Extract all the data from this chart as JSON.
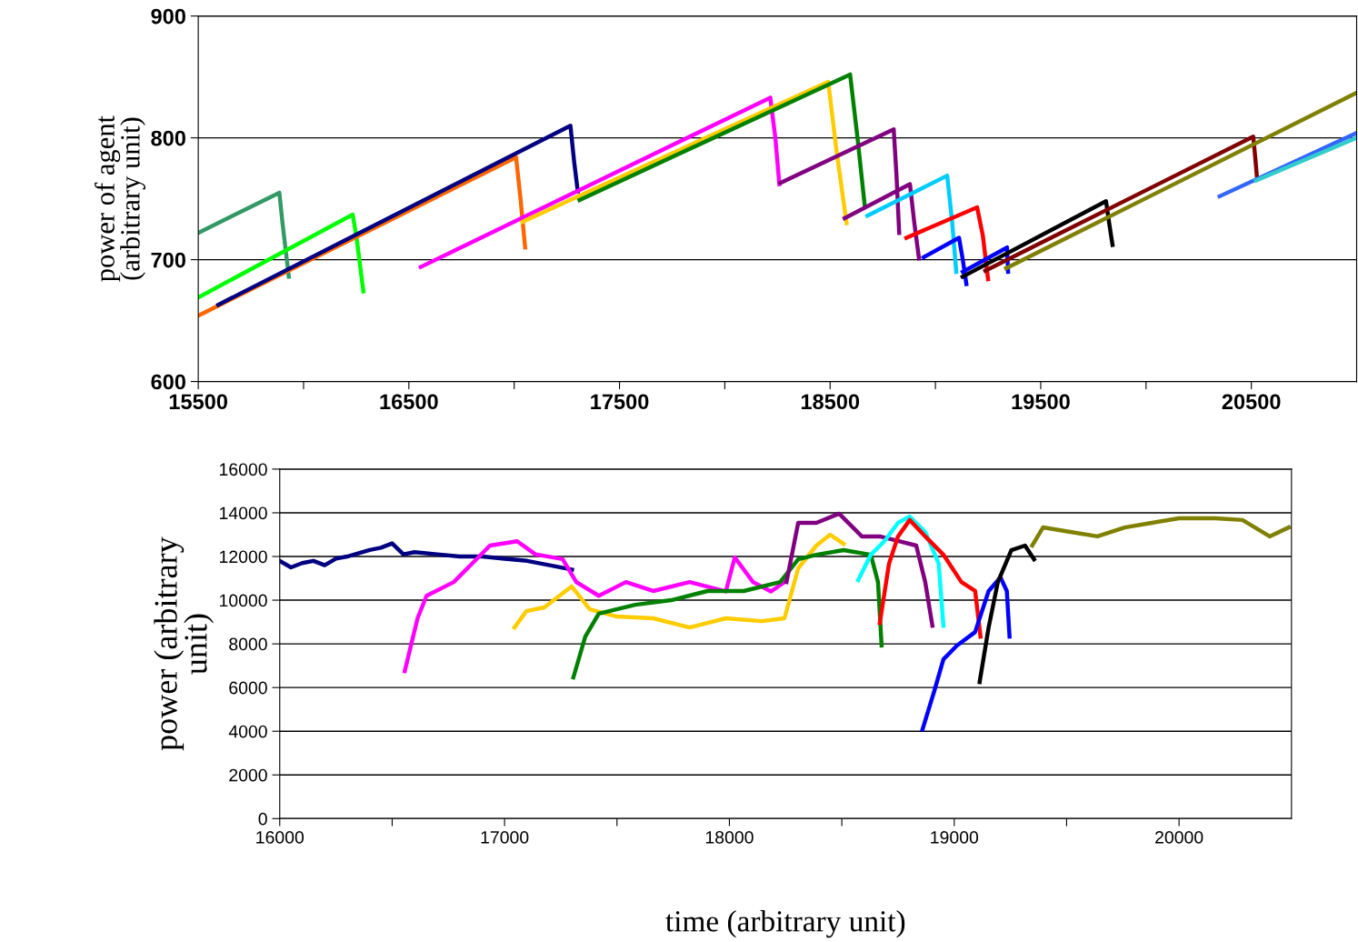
{
  "chart_data": [
    {
      "type": "line",
      "ylabel": "power of agent\n(arbitrary unit)",
      "xlim": [
        15500,
        21000
      ],
      "ylim": [
        600,
        900
      ],
      "xticks": [
        15500,
        {
          "value": 16000,
          "label": null
        },
        16500,
        {
          "value": 17000,
          "label": null
        },
        17500,
        {
          "value": 18000,
          "label": null
        },
        18500,
        {
          "value": 19000,
          "label": null
        },
        19500,
        {
          "value": 20000,
          "label": null
        },
        20500
      ],
      "yticks": [
        600,
        700,
        800,
        900
      ],
      "grid": "y",
      "legend": false,
      "marker": "none",
      "line_style": "solid",
      "series": [
        {
          "color": "#339966",
          "x": [
            15500,
            15885,
            15900,
            15930
          ],
          "values": [
            722,
            755,
            730,
            686
          ]
        },
        {
          "color": "#00ff00",
          "x": [
            15500,
            16233,
            16250,
            16284
          ],
          "values": [
            669,
            737,
            720,
            674
          ]
        },
        {
          "color": "#ff6600",
          "x": [
            15500,
            17009,
            17030,
            17052
          ],
          "values": [
            654,
            784,
            750,
            710
          ]
        },
        {
          "color": "#000080",
          "x": [
            15595,
            17267,
            17285,
            17302
          ],
          "values": [
            663,
            810,
            780,
            756
          ]
        },
        {
          "color": "#ff00ff",
          "x": [
            16556,
            18216,
            18240,
            18259
          ],
          "values": [
            694,
            833,
            800,
            762
          ]
        },
        {
          "color": "#ffcc00",
          "x": [
            17039,
            18491,
            18530,
            18578
          ],
          "values": [
            731,
            846,
            790,
            730
          ]
        },
        {
          "color": "#008000",
          "x": [
            17310,
            18595,
            18630,
            18664
          ],
          "values": [
            749,
            852,
            800,
            745
          ]
        },
        {
          "color": "#800080",
          "x": [
            18263,
            18802,
            18815,
            18828,
            null,
            18569,
            18879,
            18900,
            18922
          ],
          "values": [
            763,
            807,
            770,
            722,
            null,
            734,
            762,
            730,
            701
          ]
        },
        {
          "color": "#00ccff",
          "x": [
            18677,
            19056,
            19080,
            19099
          ],
          "values": [
            736,
            769,
            730,
            690
          ]
        },
        {
          "color": "#ff0000",
          "x": [
            18862,
            19198,
            19225,
            19250
          ],
          "values": [
            718,
            743,
            720,
            684
          ]
        },
        {
          "color": "#0000ff",
          "x": [
            18944,
            19112,
            19130,
            19147,
            null,
            19130,
            19340,
            19345
          ],
          "values": [
            702,
            718,
            700,
            680,
            null,
            690,
            710,
            690
          ]
        },
        {
          "color": "#000000",
          "x": [
            19129,
            19810,
            19825,
            19841
          ],
          "values": [
            686,
            748,
            730,
            712
          ]
        },
        {
          "color": "#800000",
          "x": [
            19237,
            20509,
            20518,
            20526
          ],
          "values": [
            691,
            801,
            785,
            769
          ]
        },
        {
          "color": "#808000",
          "x": [
            19336,
            21000
          ],
          "values": [
            693,
            837
          ]
        },
        {
          "color": "#3366ff",
          "x": [
            20349,
            21000
          ],
          "values": [
            752,
            804
          ]
        },
        {
          "color": "#33cccc",
          "x": [
            20522,
            21000
          ],
          "values": [
            765,
            800
          ]
        }
      ]
    },
    {
      "type": "line",
      "xlabel": "time (arbitrary unit)",
      "ylabel": "power (arbitrary\nunit)",
      "xlim": [
        16000,
        20500
      ],
      "ylim": [
        0,
        16000
      ],
      "xticks": [
        16000,
        {
          "value": 16500,
          "label": null
        },
        17000,
        {
          "value": 17500,
          "label": null
        },
        18000,
        {
          "value": 18500,
          "label": null
        },
        19000,
        {
          "value": 19500,
          "label": null
        },
        20000
      ],
      "yticks": [
        0,
        2000,
        4000,
        6000,
        8000,
        10000,
        12000,
        14000,
        16000
      ],
      "grid": "y",
      "legend": false,
      "marker": "none",
      "line_style": "solid",
      "series": [
        {
          "color": "#000080",
          "x": [
            16000,
            16050,
            16100,
            16150,
            16200,
            16250,
            16300,
            16400,
            16450,
            16500,
            16550,
            16600,
            16700,
            16800,
            16900,
            17000,
            17100,
            17200,
            17300
          ],
          "values": [
            11800,
            11500,
            11700,
            11800,
            11600,
            11900,
            12000,
            12300,
            12400,
            12600,
            12100,
            12200,
            12100,
            12000,
            12000,
            11900,
            11800,
            11600,
            11400
          ]
        },
        {
          "color": "#ff00ff",
          "x": [
            16556,
            16613,
            16653,
            16774,
            16855,
            16935,
            17056,
            17137,
            17258,
            17319,
            17419,
            17540,
            17661,
            17823,
            17984,
            18024,
            18105,
            18185,
            18245
          ],
          "values": [
            6750,
            9170,
            10200,
            10830,
            11670,
            12500,
            12700,
            12100,
            11880,
            10830,
            10200,
            10830,
            10420,
            10830,
            10400,
            11960,
            10830,
            10400,
            10830
          ]
        },
        {
          "color": "#ffcc00",
          "x": [
            17044,
            17097,
            17177,
            17298,
            17379,
            17500,
            17661,
            17823,
            17984,
            18145,
            18245,
            18306,
            18387,
            18448,
            18508
          ],
          "values": [
            8750,
            9500,
            9670,
            10630,
            9580,
            9250,
            9170,
            8750,
            9170,
            9040,
            9170,
            11460,
            12500,
            13000,
            12580
          ]
        },
        {
          "color": "#008000",
          "x": [
            17306,
            17359,
            17419,
            17581,
            17742,
            17903,
            18064,
            18226,
            18306,
            18387,
            18508,
            18629,
            18661,
            18677
          ],
          "values": [
            6460,
            8330,
            9380,
            9790,
            10000,
            10420,
            10420,
            10830,
            11870,
            12080,
            12290,
            12080,
            10830,
            7920
          ]
        },
        {
          "color": "#800080",
          "x": [
            18254,
            18306,
            18387,
            18488,
            18589,
            18669,
            18750,
            18831,
            18871,
            18903
          ],
          "values": [
            10830,
            13540,
            13540,
            13960,
            12920,
            12920,
            12710,
            12500,
            10830,
            8830
          ]
        },
        {
          "color": "#00ffff",
          "x": [
            18573,
            18629,
            18690,
            18750,
            18802,
            18871,
            18931,
            18952
          ],
          "values": [
            10920,
            12080,
            12710,
            13540,
            13830,
            13125,
            11670,
            8830
          ]
        },
        {
          "color": "#ff0000",
          "x": [
            18669,
            18710,
            18750,
            18802,
            18871,
            18952,
            19032,
            19093,
            19117
          ],
          "values": [
            8960,
            11670,
            12920,
            13670,
            12920,
            12080,
            10830,
            10420,
            8330
          ]
        },
        {
          "color": "#0000ff",
          "x": [
            18859,
            18911,
            18952,
            19012,
            19093,
            19153,
            19206,
            19234,
            19246
          ],
          "values": [
            4080,
            5830,
            7290,
            7920,
            8540,
            10420,
            11040,
            10420,
            8330
          ]
        },
        {
          "color": "#000000",
          "x": [
            19113,
            19153,
            19194,
            19254,
            19315,
            19355
          ],
          "values": [
            6250,
            8750,
            10830,
            12290,
            12500,
            11870
          ]
        },
        {
          "color": "#808000",
          "x": [
            19347,
            19395,
            19516,
            19637,
            19758,
            19879,
            20000,
            20161,
            20282,
            20403,
            20488
          ],
          "values": [
            12500,
            13330,
            13125,
            12920,
            13330,
            13540,
            13750,
            13750,
            13670,
            12920,
            13330
          ]
        }
      ]
    }
  ]
}
